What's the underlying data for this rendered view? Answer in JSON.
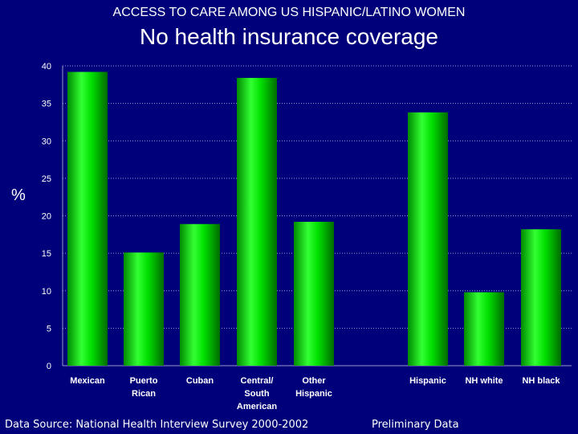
{
  "header": {
    "subtitle": "ACCESS TO CARE AMONG US HISPANIC/LATINO WOMEN",
    "title": "No health insurance coverage"
  },
  "footer": {
    "source": "Data Source:  National Health Interview Survey 2000-2002",
    "note": "Preliminary Data"
  },
  "colors": {
    "background": "#00007a",
    "bar": "#00e600",
    "gridline": "#9a9ad0",
    "text": "#ffffff"
  },
  "chart_data": {
    "type": "bar",
    "title": "No health insurance coverage",
    "ylabel": "%",
    "xlabel": "",
    "ylim": [
      0,
      40
    ],
    "yticks": [
      0,
      5,
      10,
      15,
      20,
      25,
      30,
      35,
      40
    ],
    "grid": true,
    "categories": [
      "Mexican",
      "Puerto Rican",
      "Cuban",
      "Central/ South American",
      "Other Hispanic",
      "Hispanic",
      "NH white",
      "NH black"
    ],
    "category_lines": [
      [
        "Mexican"
      ],
      [
        "Puerto",
        "Rican"
      ],
      [
        "Cuban"
      ],
      [
        "Central/",
        "South",
        "American"
      ],
      [
        "Other",
        "Hispanic"
      ],
      [
        "Hispanic"
      ],
      [
        "NH white"
      ],
      [
        "NH black"
      ]
    ],
    "values": [
      39.2,
      15.1,
      18.9,
      38.4,
      19.2,
      33.8,
      9.8,
      18.2
    ]
  }
}
